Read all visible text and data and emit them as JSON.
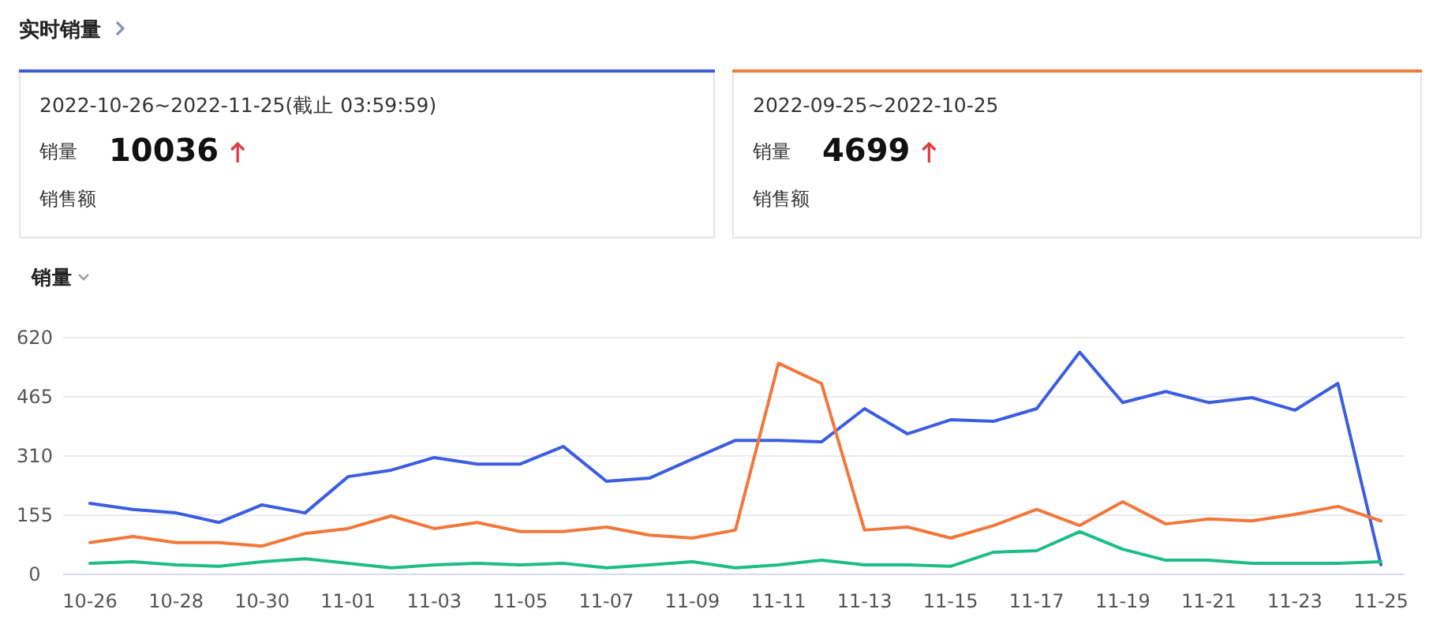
{
  "chart_data": [
    {
      "type": "other",
      "title": "实时销量",
      "annotations": [
        "2022-10-26~2022-11-25(截止 03:59:59)",
        "销量",
        "10036",
        "销售额"
      ]
    },
    {
      "type": "other",
      "annotations": [
        "2022-09-25~2022-10-25",
        "销量",
        "4699",
        "销售额"
      ]
    },
    {
      "type": "line",
      "title": "销量",
      "categories": [
        "10-26",
        null,
        "10-28",
        null,
        "10-30",
        null,
        "11-01",
        null,
        "11-03",
        null,
        "11-05",
        null,
        "11-07",
        null,
        "11-09",
        null,
        "11-11",
        null,
        "11-13",
        null,
        "11-15",
        null,
        "11-17",
        null,
        "11-19",
        null,
        "11-21",
        null,
        "11-23",
        null,
        "11-25"
      ],
      "series": [
        {
          "color": "#3b5ee0",
          "values": [
            186,
            170,
            161,
            136,
            182,
            161,
            256,
            273,
            306,
            289,
            289,
            335,
            244,
            252,
            302,
            351,
            351,
            347,
            434,
            368,
            405,
            401,
            434,
            582,
            450,
            479,
            450,
            463,
            430,
            500,
            25
          ]
        },
        {
          "color": "#f2773b",
          "values": [
            83,
            99,
            83,
            83,
            74,
            107,
            120,
            153,
            120,
            136,
            112,
            112,
            124,
            103,
            95,
            116,
            553,
            500,
            116,
            124,
            95,
            128,
            170,
            128,
            190,
            132,
            145,
            140,
            157,
            178,
            140
          ]
        },
        {
          "color": "#1ebd86",
          "values": [
            29,
            33,
            25,
            21,
            33,
            41,
            29,
            17,
            25,
            29,
            25,
            29,
            17,
            25,
            33,
            17,
            25,
            37,
            25,
            25,
            21,
            58,
            62,
            112,
            66,
            37,
            37,
            29,
            29,
            29,
            33
          ]
        }
      ],
      "ylim": [
        0,
        620
      ],
      "yticks": [
        0,
        155,
        310,
        465,
        620
      ],
      "grid": "y",
      "marker": "none",
      "line_style": "solid"
    }
  ]
}
